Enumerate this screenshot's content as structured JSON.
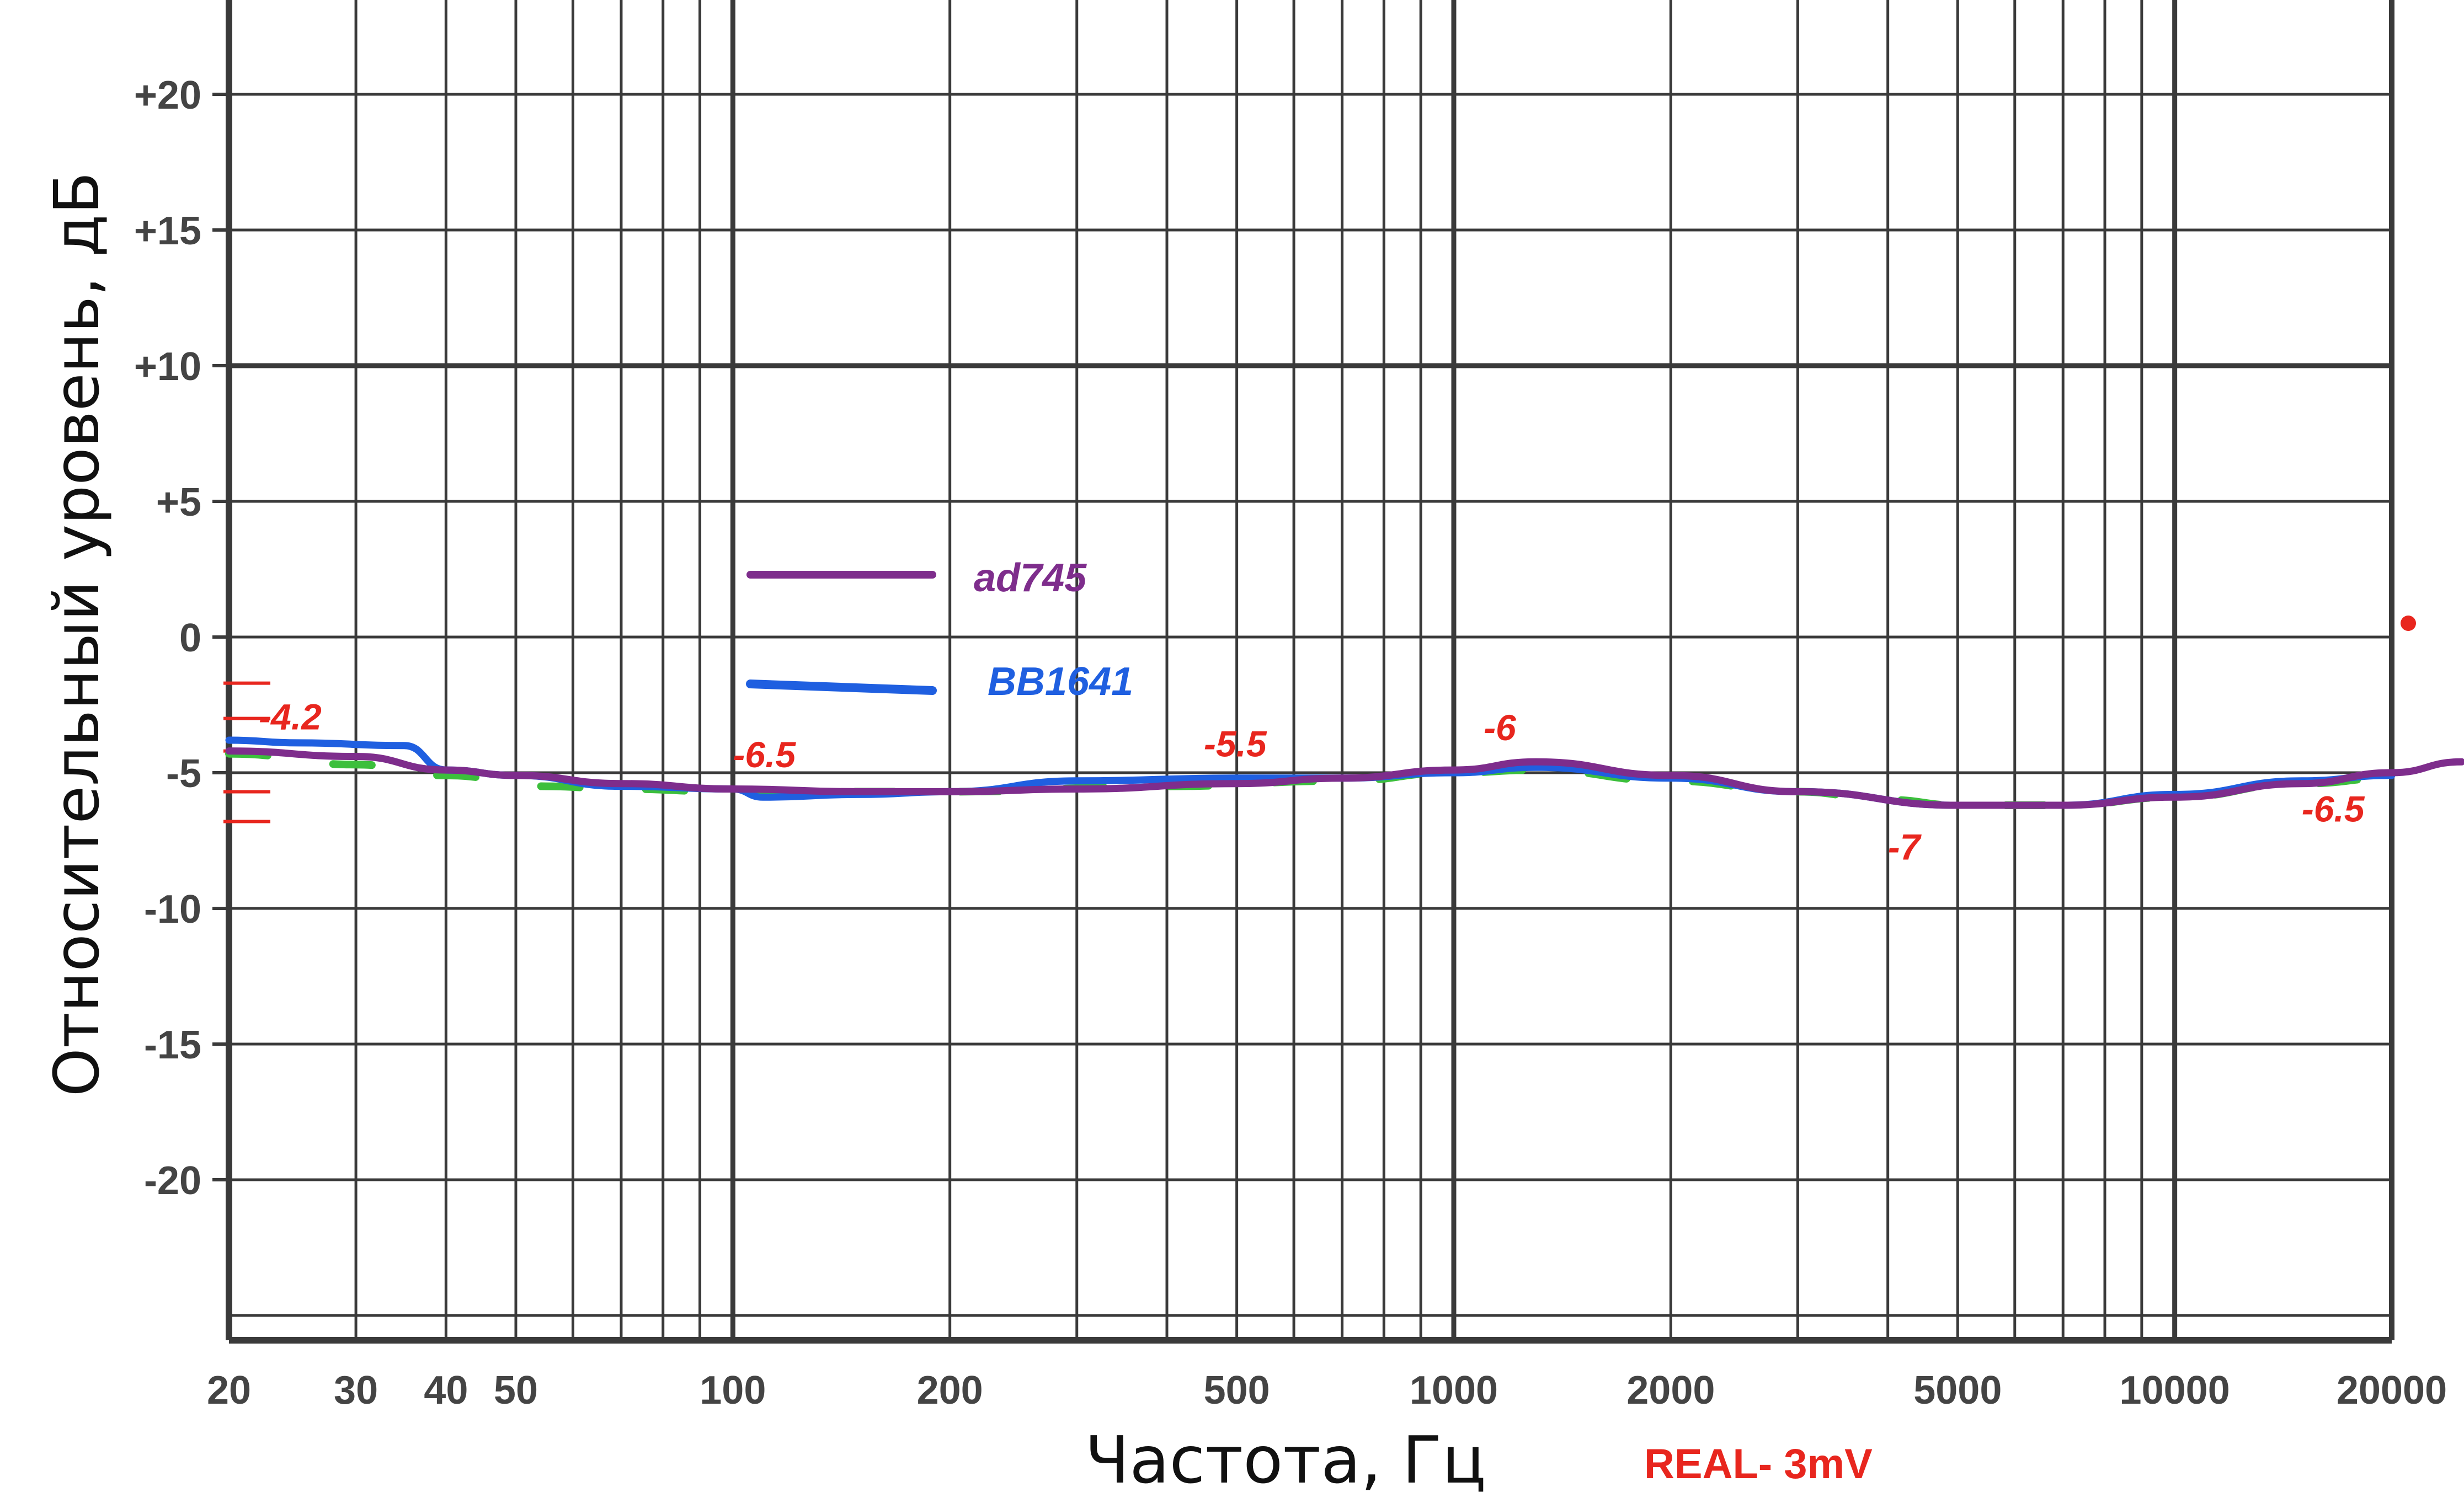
{
  "chart_data": {
    "type": "line",
    "xlabel": "Частота, Гц",
    "ylabel": "Относительный уровень, дБ",
    "x_scale": "log",
    "xlim": [
      20,
      20000
    ],
    "ylim": [
      -25,
      25
    ],
    "grid": true,
    "x_ticks": [
      {
        "value": 20,
        "label": "20"
      },
      {
        "value": 30,
        "label": "30"
      },
      {
        "value": 40,
        "label": "40"
      },
      {
        "value": 50,
        "label": "50"
      },
      {
        "value": 100,
        "label": "100"
      },
      {
        "value": 200,
        "label": "200"
      },
      {
        "value": 500,
        "label": "500"
      },
      {
        "value": 1000,
        "label": "1000"
      },
      {
        "value": 2000,
        "label": "2000"
      },
      {
        "value": 5000,
        "label": "5000"
      },
      {
        "value": 10000,
        "label": "10000"
      },
      {
        "value": 20000,
        "label": "20000"
      }
    ],
    "y_ticks": [
      {
        "value": 20,
        "label": "+20"
      },
      {
        "value": 15,
        "label": "+15"
      },
      {
        "value": 10,
        "label": "+10"
      },
      {
        "value": 5,
        "label": "+5"
      },
      {
        "value": 0,
        "label": "0"
      },
      {
        "value": -5,
        "label": "-5"
      },
      {
        "value": -10,
        "label": "-10"
      },
      {
        "value": -15,
        "label": "-15"
      },
      {
        "value": -20,
        "label": "-20"
      }
    ],
    "legend_position": "center-left",
    "series": [
      {
        "name": "ad745",
        "color": "#7e2d8c",
        "x": [
          20,
          30,
          40,
          50,
          70,
          100,
          150,
          200,
          300,
          500,
          700,
          1000,
          1300,
          2000,
          3000,
          5000,
          7000,
          10000,
          15000,
          20000,
          25000
        ],
        "y": [
          -4.2,
          -4.4,
          -4.9,
          -5.1,
          -5.4,
          -5.6,
          -5.7,
          -5.7,
          -5.6,
          -5.4,
          -5.2,
          -4.9,
          -4.6,
          -5.1,
          -5.7,
          -6.2,
          -6.2,
          -5.9,
          -5.4,
          -5.0,
          -4.6
        ]
      },
      {
        "name": "BB1641",
        "color": "#1f5fe0",
        "x": [
          20,
          25,
          35,
          40,
          50,
          70,
          100,
          110,
          150,
          200,
          300,
          500,
          700,
          1000,
          1300,
          2000,
          3000,
          5000,
          7000,
          10000,
          15000,
          20000
        ],
        "y": [
          -3.8,
          -3.9,
          -4.0,
          -4.9,
          -5.1,
          -5.5,
          -5.6,
          -5.9,
          -5.8,
          -5.7,
          -5.3,
          -5.2,
          -5.2,
          -5.0,
          -4.8,
          -5.2,
          -5.7,
          -6.2,
          -6.2,
          -5.8,
          -5.3,
          -5.1
        ]
      },
      {
        "name": "",
        "color": "#3cbf3c",
        "dashed": true,
        "x": [
          20,
          30,
          40,
          55,
          70,
          100,
          200,
          400,
          700,
          1000,
          1300,
          2000,
          3000,
          4000,
          5000,
          7000,
          10000,
          15000,
          20000
        ],
        "y": [
          -4.3,
          -4.7,
          -5.1,
          -5.5,
          -5.6,
          -5.7,
          -5.7,
          -5.5,
          -5.3,
          -5.0,
          -4.9,
          -5.3,
          -5.7,
          -6.0,
          -6.2,
          -6.2,
          -5.9,
          -5.4,
          -5.2
        ]
      }
    ],
    "annotations": [
      {
        "text": "-4.2",
        "x": 22,
        "y": -3.4
      },
      {
        "text": "-6.5",
        "x": 100,
        "y": -4.8
      },
      {
        "text": "-5.5",
        "x": 450,
        "y": -4.4
      },
      {
        "text": "-6",
        "x": 1100,
        "y": -3.8
      },
      {
        "text": "-7",
        "x": 4000,
        "y": -8.2
      },
      {
        "text": "-6.5",
        "x": 15000,
        "y": -6.8
      }
    ],
    "note": "REAL- 3mV",
    "colors": {
      "grid": "#3a3a3a",
      "annotation": "#e8261e",
      "tick_text": "#444444"
    }
  }
}
